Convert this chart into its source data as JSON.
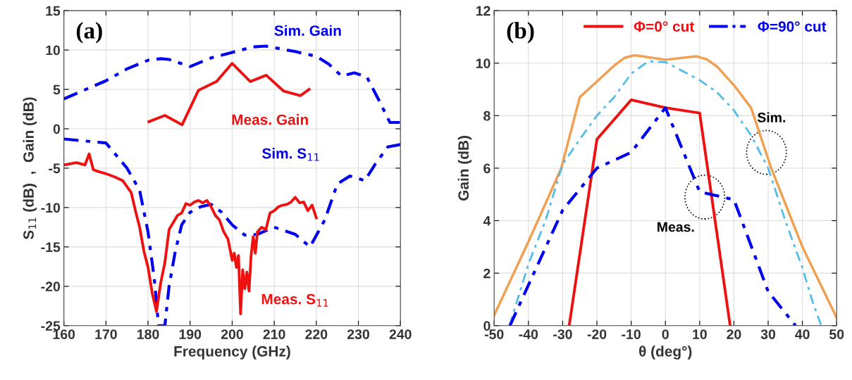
{
  "chart_data": [
    {
      "type": "line",
      "xlabel": "Frequency (GHz)",
      "ylabel": "S$_{11}$ (dB)  ,  Gain (dB)",
      "xlim": [
        160,
        240
      ],
      "ylim": [
        -25,
        15
      ],
      "xticks": [
        160,
        170,
        180,
        190,
        200,
        210,
        220,
        230,
        240
      ],
      "yticks": [
        -25,
        -20,
        -15,
        -10,
        -5,
        0,
        5,
        10,
        15
      ],
      "grid": true,
      "legend": false,
      "annotations": [
        "(a)"
      ],
      "series": [
        {
          "name": "Sim. Gain",
          "color": "#0000ee",
          "line_style": "dashdot",
          "x": [
            160,
            170,
            175,
            180,
            183,
            185,
            190,
            195,
            200,
            205,
            208,
            210,
            215,
            220,
            223,
            226,
            229,
            232,
            235,
            237.5,
            240
          ],
          "values": [
            3.8,
            6.1,
            7.6,
            8.7,
            8.9,
            8.8,
            7.9,
            9.0,
            9.7,
            10.4,
            10.5,
            10.3,
            9.8,
            9.2,
            8.2,
            6.7,
            7.1,
            6.6,
            3.5,
            0.8,
            0.8
          ]
        },
        {
          "name": "Meas. Gain",
          "color": "#ee1111",
          "line_style": "solid",
          "x": [
            180.2,
            184,
            188.1,
            192,
            196.3,
            200,
            204.3,
            208.1,
            212.2,
            216.2,
            218.3
          ],
          "values": [
            0.9,
            1.7,
            0.5,
            4.9,
            6.0,
            8.3,
            6.0,
            6.8,
            4.8,
            4.2,
            5.0
          ]
        },
        {
          "name": "Sim. S$_{11}$",
          "color": "#0000ee",
          "line_style": "dashdot",
          "x": [
            160,
            170,
            175,
            178,
            180,
            181.5,
            182.5,
            184,
            185,
            186.5,
            188,
            190,
            192.5,
            195,
            197.5,
            200,
            203,
            206,
            210,
            215,
            218.5,
            222,
            225,
            228,
            230,
            231.5,
            234,
            237,
            240
          ],
          "values": [
            -1.3,
            -1.8,
            -5,
            -7.8,
            -13.1,
            -19.1,
            -25,
            -25,
            -20,
            -15.5,
            -12.2,
            -10.6,
            -9.9,
            -9.6,
            -10.6,
            -12.2,
            -13.5,
            -13.4,
            -12.5,
            -13.4,
            -15,
            -11.6,
            -7,
            -6,
            -6.3,
            -6.6,
            -4.5,
            -2.3,
            -2
          ]
        },
        {
          "name": "Meas. S$_{11}$",
          "color": "#ee1111",
          "line_style": "solid",
          "x": [
            160,
            163,
            165,
            166,
            167,
            168,
            170,
            172,
            174,
            176,
            177,
            178,
            179,
            180,
            181,
            182,
            183,
            184,
            185,
            186,
            187,
            188,
            189,
            190,
            191,
            192,
            193,
            194,
            195,
            196,
            197,
            198,
            199,
            200,
            200.5,
            201,
            201.5,
            202,
            202.5,
            203,
            203.5,
            204,
            204.5,
            205,
            205.5,
            206,
            207,
            208,
            209,
            210,
            211,
            212,
            213,
            214,
            215,
            216,
            217,
            218,
            219,
            220
          ],
          "values": [
            -4.6,
            -4.3,
            -4.6,
            -3.2,
            -5.2,
            -5.4,
            -5.7,
            -6.1,
            -6.6,
            -8.1,
            -10.4,
            -12.5,
            -15.5,
            -17.6,
            -20.9,
            -23.2,
            -19.6,
            -17,
            -12.8,
            -11.9,
            -11,
            -10.7,
            -9.5,
            -9.7,
            -9.3,
            -9.1,
            -9.4,
            -9.1,
            -9.9,
            -11,
            -11.6,
            -13.1,
            -14,
            -16.7,
            -15.8,
            -17.6,
            -16.1,
            -23.5,
            -17.9,
            -20.3,
            -18.2,
            -20.6,
            -16.1,
            -13.7,
            -15.8,
            -13.1,
            -12.5,
            -12.8,
            -10.7,
            -10.4,
            -9.9,
            -9.7,
            -9.6,
            -9.3,
            -8.7,
            -9.4,
            -9.3,
            -10.4,
            -9.7,
            -11.3
          ]
        }
      ]
    },
    {
      "type": "line",
      "xlabel": "θ (deg°)",
      "ylabel": "Gain (dB)",
      "xlim": [
        -50,
        50
      ],
      "ylim": [
        0,
        12
      ],
      "xticks": [
        -50,
        -40,
        -30,
        -20,
        -10,
        0,
        10,
        20,
        30,
        40,
        50
      ],
      "yticks": [
        0,
        2,
        4,
        6,
        8,
        10,
        12
      ],
      "grid": true,
      "legend": "top right",
      "annotations": [
        "(b)",
        {
          "text": "Sim.",
          "x": 29.5,
          "y": 6.6
        },
        {
          "text": "Meas.",
          "x": 11.5,
          "y": 4.9
        }
      ],
      "series": [
        {
          "color": "#f0a050",
          "line_style": "solid",
          "x": [
            -50,
            -40,
            -30.4,
            -25,
            -20,
            -15,
            -12,
            -9,
            0,
            9,
            12,
            15,
            20,
            25,
            30.9,
            40,
            50
          ],
          "values": [
            0.4,
            3.2,
            6.0,
            8.7,
            9.3,
            9.9,
            10.2,
            10.3,
            10.13,
            10.26,
            10.15,
            9.88,
            9.16,
            8.3,
            6.0,
            3.0,
            0.3
          ]
        },
        {
          "color": "#55bbe8",
          "line_style": "dashdot",
          "x": [
            -45.5,
            -40,
            -35,
            -30,
            -25,
            -20,
            -15,
            -10,
            -5,
            0,
            5,
            10,
            15,
            20,
            25,
            30,
            35,
            40,
            43,
            45.5
          ],
          "values": [
            0,
            2.35,
            4,
            6.15,
            7.1,
            8.0,
            8.7,
            9.6,
            10.07,
            10.04,
            9.7,
            9.35,
            8.9,
            8.2,
            7.25,
            6,
            4,
            2.2,
            0.9,
            0
          ]
        },
        {
          "name": "Φ=0° cut",
          "color": "#ee1111",
          "line_style": "solid",
          "x": [
            -28.1,
            -20,
            -10,
            0,
            10,
            18.9
          ],
          "values": [
            0,
            7.1,
            8.6,
            8.3,
            8.1,
            0
          ]
        },
        {
          "name": "Φ=90° cut",
          "color": "#0000ee",
          "line_style": "dashdot",
          "x": [
            -45.4,
            -30,
            -20,
            -10,
            0,
            10,
            20,
            30,
            38
          ],
          "values": [
            0,
            4.4,
            6.0,
            6.6,
            8.3,
            5.1,
            4.8,
            1.3,
            0
          ]
        }
      ]
    }
  ]
}
